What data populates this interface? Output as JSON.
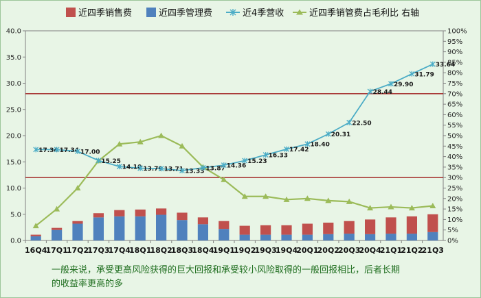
{
  "note": {
    "line1": "一般来说，承受更高风险获得的巨大回报和承受较小风险取得的一般回报相比，后者长期",
    "line2": "的收益率更高的多"
  },
  "colors": {
    "background": "#e8f5e6",
    "sales_expense": "#c0504d",
    "admin_expense": "#4f81bd",
    "revenue": "#4bacc6",
    "ratio": "#9bbb59",
    "reference_line": "#a01f1f"
  },
  "chart_data": {
    "type": "bar",
    "categories": [
      "16Q4",
      "17Q1",
      "17Q2",
      "17Q3",
      "17Q4",
      "18Q1",
      "18Q2",
      "18Q3",
      "18Q4",
      "19Q1",
      "19Q2",
      "19Q3",
      "19Q4",
      "20Q1",
      "20Q2",
      "20Q3",
      "20Q4",
      "21Q1",
      "21Q2",
      "21Q3"
    ],
    "left_axis": {
      "ylim": [
        0,
        40
      ],
      "ticks": [
        "0.0",
        "5.0",
        "10.0",
        "15.0",
        "20.0",
        "25.0",
        "30.0",
        "35.0",
        "40.0"
      ]
    },
    "right_axis": {
      "ylim": [
        0,
        100
      ],
      "ticks": [
        "0%",
        "5%",
        "10%",
        "15%",
        "20%",
        "25%",
        "30%",
        "35%",
        "40%",
        "45%",
        "50%",
        "55%",
        "60%",
        "65%",
        "70%",
        "75%",
        "80%",
        "85%",
        "90%",
        "95%",
        "100%"
      ]
    },
    "series": [
      {
        "name": "近四季销售费",
        "kind": "stacked-bar",
        "axis": "left",
        "values": [
          0.3,
          0.4,
          0.5,
          0.8,
          1.2,
          1.3,
          1.2,
          1.4,
          1.3,
          1.5,
          1.7,
          1.8,
          1.8,
          2.1,
          2.2,
          2.4,
          2.8,
          3.1,
          3.3,
          3.4
        ]
      },
      {
        "name": "近四季管理费",
        "kind": "stacked-bar",
        "axis": "left",
        "values": [
          0.8,
          2.0,
          3.2,
          4.4,
          4.6,
          4.6,
          4.9,
          3.9,
          3.1,
          2.2,
          1.1,
          1.1,
          1.1,
          1.1,
          1.2,
          1.3,
          1.2,
          1.3,
          1.3,
          1.6
        ]
      },
      {
        "name": "近4季营收",
        "kind": "line",
        "axis": "left",
        "values": [
          17.34,
          17.34,
          17.0,
          15.25,
          14.1,
          13.79,
          13.71,
          13.33,
          13.87,
          14.36,
          15.23,
          16.33,
          17.42,
          18.4,
          20.31,
          22.5,
          28.44,
          29.9,
          31.79,
          33.64
        ],
        "labels": [
          "17.34",
          "17.34",
          "17.00",
          "15.25",
          "14.10",
          "13.79",
          "13.71",
          "13.33",
          "13.87",
          "14.36",
          "15.23",
          "16.33",
          "17.42",
          "18.40",
          "20.31",
          "22.50",
          "28.44",
          "29.90",
          "31.79",
          "33.64"
        ]
      },
      {
        "name": "近四季销管费占毛利比 右轴",
        "kind": "line",
        "axis": "right",
        "values": [
          7,
          15,
          25,
          38,
          46,
          47,
          50,
          45,
          35,
          29,
          21,
          21,
          19.5,
          20,
          19,
          18.5,
          15.5,
          16,
          15.5,
          16.5
        ]
      }
    ],
    "reference_lines_left_axis": [
      12,
      28
    ],
    "legend": {
      "placement": "top",
      "items": [
        "近四季销售费",
        "近四季管理费",
        "近4季营收",
        "近四季销管费占毛利比 右轴"
      ]
    }
  }
}
